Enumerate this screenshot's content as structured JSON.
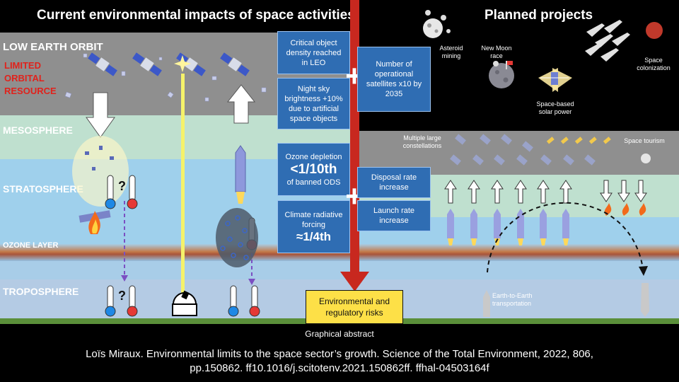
{
  "title_left": "Current environmental impacts of space activities",
  "title_right": "Planned projects",
  "layers": {
    "leo": "LOW EARTH ORBIT",
    "meso": "MESOSPHERE",
    "strato": "STRATOSPHERE",
    "ozone": "OZONE LAYER",
    "tropo": "TROPOSPHERE"
  },
  "limited_resource": [
    "LIMITED",
    "ORBITAL",
    "RESOURCE"
  ],
  "boxes": {
    "critical": "Critical object density reached in LEO",
    "night_sky": "Night sky brightness +10% due to artificial space objects",
    "ozone_title": "Ozone depletion",
    "ozone_value": "<1/10th",
    "ozone_sub": "of banned ODS",
    "climate_title": "Climate radiative forcing",
    "climate_value": "≈1/4th",
    "satellites": "Number of operational satellites x10 by 2035",
    "disposal": "Disposal rate increase",
    "launch": "Launch rate increase",
    "risks": "Environmental and regulatory risks"
  },
  "plus_symbol": "+",
  "question_mark": "?",
  "projects": {
    "asteroid": "Asteroid mining",
    "moon": "New Moon race",
    "solar": "Space-based solar power",
    "colonization": "Space colonization",
    "constellations": "Multiple large constellations",
    "tourism": "Space tourism",
    "e2e": "Earth-to-Earth transportation"
  },
  "caption": "Graphical abstract",
  "citation_line1": "Loïs Miraux. Environmental limits to the space sector’s growth. Science of the Total Environment, 2022, 806,",
  "citation_line2": "pp.150862. ff10.1016/j.scitotenv.2021.150862ff. ffhal-04503164f",
  "colors": {
    "leo_band": "#8f8f8f",
    "meso_band": "#bfe0cf",
    "strato_band": "#9fd0ec",
    "tropo_band": "#b4cbe4",
    "box_blue": "#2f6db3",
    "divider_red": "#c8281f",
    "risk_yellow": "#fde047",
    "limited_red": "#e0221c"
  }
}
